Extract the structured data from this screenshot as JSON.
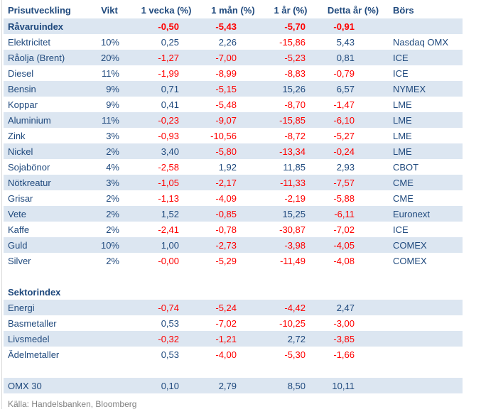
{
  "chart_data": {
    "type": "table",
    "columns": [
      "Prisutveckling",
      "Vikt",
      "1 vecka (%)",
      "1 mån (%)",
      "1 år (%)",
      "Detta år (%)",
      "Börs"
    ],
    "rows": [
      {
        "name": "Råvaruindex",
        "weight": "",
        "w1": "-0,50",
        "m1": "-5,43",
        "y1": "-5,70",
        "ytd": "-0,91",
        "exchange": "",
        "shaded": true,
        "bold": true,
        "spacer": false
      },
      {
        "name": "Elektricitet",
        "weight": "10%",
        "w1": "0,25",
        "m1": "2,26",
        "y1": "-15,86",
        "ytd": "5,43",
        "exchange": "Nasdaq OMX",
        "shaded": false,
        "bold": false,
        "spacer": false
      },
      {
        "name": "Råolja (Brent)",
        "weight": "20%",
        "w1": "-1,27",
        "m1": "-7,00",
        "y1": "-5,23",
        "ytd": "0,81",
        "exchange": "ICE",
        "shaded": true,
        "bold": false,
        "spacer": false
      },
      {
        "name": "Diesel",
        "weight": "11%",
        "w1": "-1,99",
        "m1": "-8,99",
        "y1": "-8,83",
        "ytd": "-0,79",
        "exchange": "ICE",
        "shaded": false,
        "bold": false,
        "spacer": false
      },
      {
        "name": "Bensin",
        "weight": "9%",
        "w1": "0,71",
        "m1": "-5,15",
        "y1": "15,26",
        "ytd": "6,57",
        "exchange": "NYMEX",
        "shaded": true,
        "bold": false,
        "spacer": false
      },
      {
        "name": "Koppar",
        "weight": "9%",
        "w1": "0,41",
        "m1": "-5,48",
        "y1": "-8,70",
        "ytd": "-1,47",
        "exchange": "LME",
        "shaded": false,
        "bold": false,
        "spacer": false
      },
      {
        "name": "Aluminium",
        "weight": "11%",
        "w1": "-0,23",
        "m1": "-9,07",
        "y1": "-15,85",
        "ytd": "-6,10",
        "exchange": "LME",
        "shaded": true,
        "bold": false,
        "spacer": false
      },
      {
        "name": "Zink",
        "weight": "3%",
        "w1": "-0,93",
        "m1": "-10,56",
        "y1": "-8,72",
        "ytd": "-5,27",
        "exchange": "LME",
        "shaded": false,
        "bold": false,
        "spacer": false
      },
      {
        "name": "Nickel",
        "weight": "2%",
        "w1": "3,40",
        "m1": "-5,80",
        "y1": "-13,34",
        "ytd": "-0,24",
        "exchange": "LME",
        "shaded": true,
        "bold": false,
        "spacer": false
      },
      {
        "name": "Sojabönor",
        "weight": "4%",
        "w1": "-2,58",
        "m1": "1,92",
        "y1": "11,85",
        "ytd": "2,93",
        "exchange": "CBOT",
        "shaded": false,
        "bold": false,
        "spacer": false
      },
      {
        "name": "Nötkreatur",
        "weight": "3%",
        "w1": "-1,05",
        "m1": "-2,17",
        "y1": "-11,33",
        "ytd": "-7,57",
        "exchange": "CME",
        "shaded": true,
        "bold": false,
        "spacer": false
      },
      {
        "name": "Grisar",
        "weight": "2%",
        "w1": "-1,13",
        "m1": "-4,09",
        "y1": "-2,19",
        "ytd": "-5,88",
        "exchange": "CME",
        "shaded": false,
        "bold": false,
        "spacer": false
      },
      {
        "name": "Vete",
        "weight": "2%",
        "w1": "1,52",
        "m1": "-0,85",
        "y1": "15,25",
        "ytd": "-6,11",
        "exchange": "Euronext",
        "shaded": true,
        "bold": false,
        "spacer": false
      },
      {
        "name": "Kaffe",
        "weight": "2%",
        "w1": "-2,41",
        "m1": "-0,78",
        "y1": "-30,87",
        "ytd": "-7,02",
        "exchange": "ICE",
        "shaded": false,
        "bold": false,
        "spacer": false
      },
      {
        "name": "Guld",
        "weight": "10%",
        "w1": "1,00",
        "m1": "-2,73",
        "y1": "-3,98",
        "ytd": "-4,05",
        "exchange": "COMEX",
        "shaded": true,
        "bold": false,
        "spacer": false
      },
      {
        "name": "Silver",
        "weight": "2%",
        "w1": "-0,00",
        "m1": "-5,29",
        "y1": "-11,49",
        "ytd": "-4,08",
        "exchange": "COMEX",
        "shaded": false,
        "bold": false,
        "spacer": false
      },
      {
        "name": "",
        "weight": "",
        "w1": "",
        "m1": "",
        "y1": "",
        "ytd": "",
        "exchange": "",
        "shaded": false,
        "bold": false,
        "spacer": true
      },
      {
        "name": "Sektorindex",
        "weight": "",
        "w1": "",
        "m1": "",
        "y1": "",
        "ytd": "",
        "exchange": "",
        "shaded": false,
        "bold": true,
        "spacer": false
      },
      {
        "name": "Energi",
        "weight": "",
        "w1": "-0,74",
        "m1": "-5,24",
        "y1": "-4,42",
        "ytd": "2,47",
        "exchange": "",
        "shaded": true,
        "bold": false,
        "spacer": false
      },
      {
        "name": "Basmetaller",
        "weight": "",
        "w1": "0,53",
        "m1": "-7,02",
        "y1": "-10,25",
        "ytd": "-3,00",
        "exchange": "",
        "shaded": false,
        "bold": false,
        "spacer": false
      },
      {
        "name": "Livsmedel",
        "weight": "",
        "w1": "-0,32",
        "m1": "-1,21",
        "y1": "2,72",
        "ytd": "-3,85",
        "exchange": "",
        "shaded": true,
        "bold": false,
        "spacer": false
      },
      {
        "name": "Ädelmetaller",
        "weight": "",
        "w1": "0,53",
        "m1": "-4,00",
        "y1": "-5,30",
        "ytd": "-1,66",
        "exchange": "",
        "shaded": false,
        "bold": false,
        "spacer": false
      },
      {
        "name": "",
        "weight": "",
        "w1": "",
        "m1": "",
        "y1": "",
        "ytd": "",
        "exchange": "",
        "shaded": false,
        "bold": false,
        "spacer": true
      },
      {
        "name": "OMX 30",
        "weight": "",
        "w1": "0,10",
        "m1": "2,79",
        "y1": "8,50",
        "ytd": "10,11",
        "exchange": "",
        "shaded": true,
        "bold": false,
        "spacer": false
      }
    ]
  },
  "footer": {
    "source": "Källa: Handelsbanken, Bloomberg"
  },
  "colors": {
    "header_text": "#1F497D",
    "positive_value": "#1F497D",
    "negative_value": "#FF0000",
    "row_shaded_bg": "#DCE6F1",
    "row_plain_bg": "#FFFFFF",
    "source_text": "#808080",
    "left_border": "#D9D9D9"
  }
}
